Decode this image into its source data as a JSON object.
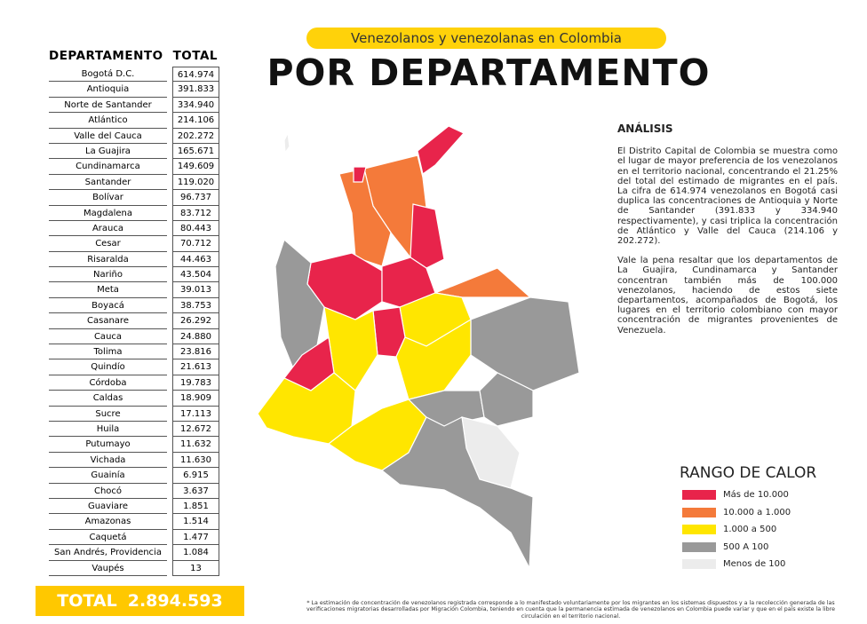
{
  "header": {
    "subtitle": "Venezolanos y venezolanas en Colombia",
    "title": "POR DEPARTAMENTO"
  },
  "table": {
    "headers": [
      "DEPARTAMENTO",
      "TOTAL"
    ],
    "rows": [
      [
        "Bogotá D.C.",
        "614.974"
      ],
      [
        "Antioquia",
        "391.833"
      ],
      [
        "Norte de Santander",
        "334.940"
      ],
      [
        "Atlántico",
        "214.106"
      ],
      [
        "Valle del Cauca",
        "202.272"
      ],
      [
        "La Guajira",
        "165.671"
      ],
      [
        "Cundinamarca",
        "149.609"
      ],
      [
        "Santander",
        "119.020"
      ],
      [
        "Bolívar",
        "96.737"
      ],
      [
        "Magdalena",
        "83.712"
      ],
      [
        "Arauca",
        "80.443"
      ],
      [
        "Cesar",
        "70.712"
      ],
      [
        "Risaralda",
        "44.463"
      ],
      [
        "Nariño",
        "43.504"
      ],
      [
        "Meta",
        "39.013"
      ],
      [
        "Boyacá",
        "38.753"
      ],
      [
        "Casanare",
        "26.292"
      ],
      [
        "Cauca",
        "24.880"
      ],
      [
        "Tolima",
        "23.816"
      ],
      [
        "Quindío",
        "21.613"
      ],
      [
        "Córdoba",
        "19.783"
      ],
      [
        "Caldas",
        "18.909"
      ],
      [
        "Sucre",
        "17.113"
      ],
      [
        "Huila",
        "12.672"
      ],
      [
        "Putumayo",
        "11.632"
      ],
      [
        "Vichada",
        "11.630"
      ],
      [
        "Guainía",
        "6.915"
      ],
      [
        "Chocó",
        "3.637"
      ],
      [
        "Guaviare",
        "1.851"
      ],
      [
        "Amazonas",
        "1.514"
      ],
      [
        "Caquetá",
        "1.477"
      ],
      [
        "San Andrés, Providencia",
        "1.084"
      ],
      [
        "Vaupés",
        "13"
      ]
    ]
  },
  "total": {
    "label": "TOTAL",
    "value": "2.894.593"
  },
  "analysis": {
    "title": "ANÁLISIS",
    "paragraphs": [
      "El Distrito Capital de Colombia se muestra como el lugar de mayor preferencia de los venezolanos en el territorio nacional, concentrando el 21.25% del total del estimado de migrantes en el país. La cifra de 614.974 venezolanos en Bogotá casi duplica las concentraciones de Antioquia y Norte de Santander (391.833 y 334.940 respectivamente), y casi triplica la concentración de Atlántico y Valle del Cauca (214.106 y 202.272).",
      "Vale la pena resaltar que los departamentos de La Guajira, Cundinamarca y Santander concentran también más de 100.000 venezolanos, haciendo de estos siete departamentos, acompañados de Bogotá, los lugares en el territorio colombiano con mayor concentración de migrantes provenientes de Venezuela."
    ]
  },
  "legend": {
    "title": "RANGO DE CALOR",
    "items": [
      {
        "label": "Más de 10.000",
        "color": "#e8244b"
      },
      {
        "label": "10.000 a 1.000",
        "color": "#f47a3a"
      },
      {
        "label": "1.000 a 500",
        "color": "#ffe600"
      },
      {
        "label": "500 A 100",
        "color": "#999999"
      },
      {
        "label": "Menos de 100",
        "color": "#ececec"
      }
    ]
  },
  "footnote": "* La estimación de concentración de venezolanos registrada corresponde a lo manifestado voluntariamente por los migrantes en los sistemas dispuestos y a la recolección generada de las verificaciones migratorias desarrolladas por Migración Colombia, teniendo en cuenta que la permanencia estimada de venezolanos en Colombia puede variar y que en el país existe la libre circulación en el territorio nacional."
}
